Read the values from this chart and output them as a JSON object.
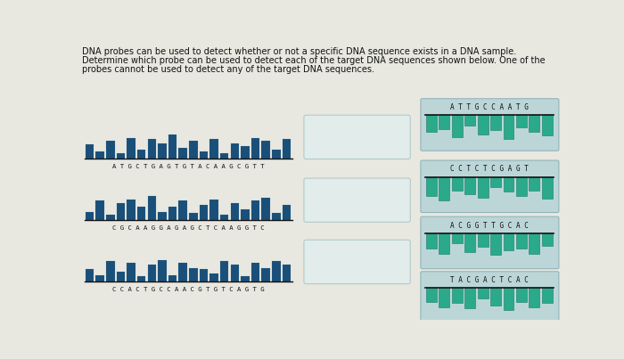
{
  "title_line1": "DNA probes can be used to detect whether or not a specific DNA sequence exists in a DNA sample.",
  "title_line2": "Determine which probe can be used to detect each of the target DNA sequences shown below. One of the",
  "title_line3": "probes cannot be used to detect any of the target DNA sequences.",
  "bg_color": "#e8e8e0",
  "target_sequences": [
    "A T G C T G A G T G T A C A A G C G T T",
    "C G C A A G G A G A G C T C A A G G T C",
    "C C A C T G C C A A C G T G T C A G T G"
  ],
  "probe_sequences": [
    "A T T G C C A A T G",
    "C C T C T C G A G T",
    "A C G G T T G C A C",
    "T A C G A C T C A C"
  ],
  "dna_color": "#1a4f7a",
  "probe_color_main": "#2aaa8a",
  "probe_color_dark": "#1a7a6a",
  "probe_box_bg": "#b8d4d8",
  "probe_box_edge": "#8ab0b8",
  "answer_box_bg": "#e0eeee",
  "answer_box_edge": "#a0c0c0",
  "target_heights_1": [
    20,
    10,
    25,
    8,
    30,
    12,
    28,
    22,
    35,
    15,
    25,
    10,
    28,
    8,
    22,
    18,
    30,
    25,
    12,
    28
  ],
  "target_heights_2": [
    12,
    28,
    8,
    25,
    30,
    20,
    35,
    12,
    20,
    28,
    10,
    22,
    30,
    8,
    25,
    15,
    28,
    32,
    10,
    22
  ],
  "target_heights_3": [
    18,
    10,
    30,
    15,
    28,
    8,
    25,
    32,
    10,
    28,
    20,
    18,
    12,
    30,
    25,
    8,
    28,
    20,
    30,
    25
  ],
  "probe_heights_1": [
    25,
    20,
    32,
    15,
    28,
    22,
    35,
    18,
    25,
    30
  ],
  "probe_heights_2": [
    28,
    35,
    20,
    25,
    30,
    15,
    22,
    28,
    20,
    32
  ],
  "probe_heights_3": [
    22,
    30,
    15,
    28,
    20,
    32,
    25,
    22,
    30,
    18
  ],
  "probe_heights_4": [
    20,
    28,
    22,
    30,
    15,
    25,
    32,
    20,
    28,
    22
  ]
}
